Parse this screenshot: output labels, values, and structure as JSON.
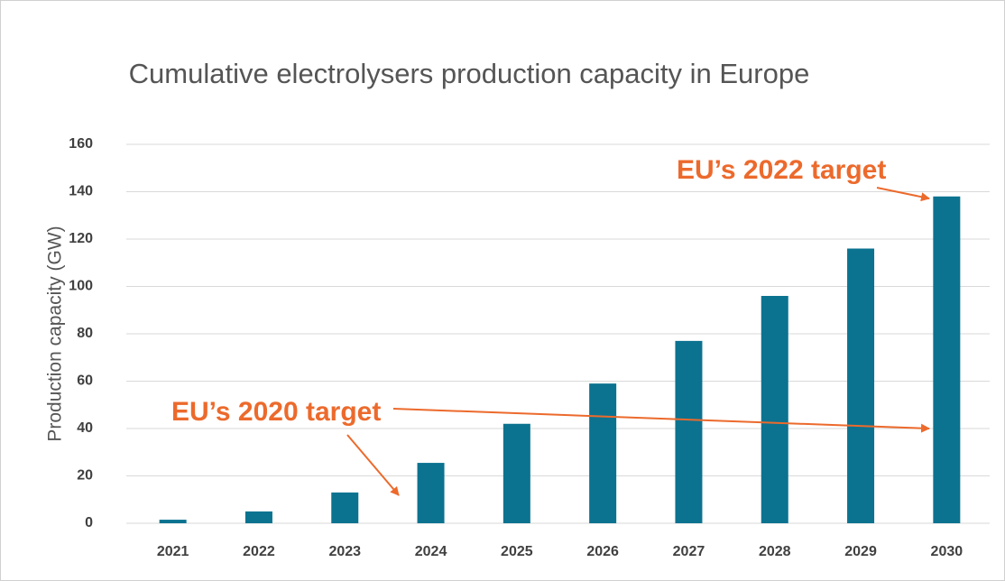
{
  "chart_data": {
    "type": "bar",
    "title": "Cumulative electrolysers production capacity in Europe",
    "y_label": "Production capacity (GW)",
    "categories": [
      "2021",
      "2022",
      "2023",
      "2024",
      "2025",
      "2026",
      "2027",
      "2028",
      "2029",
      "2030"
    ],
    "values": [
      1.5,
      5,
      13,
      25.5,
      42,
      59,
      77,
      96,
      116,
      138
    ],
    "color": "#0b7390",
    "ylim": [
      0,
      160
    ],
    "yticks": [
      0,
      20,
      40,
      60,
      80,
      100,
      120,
      140,
      160
    ],
    "grid": true,
    "annotations": [
      "EU’s 2020 target",
      "EU’s 2022 target"
    ]
  }
}
